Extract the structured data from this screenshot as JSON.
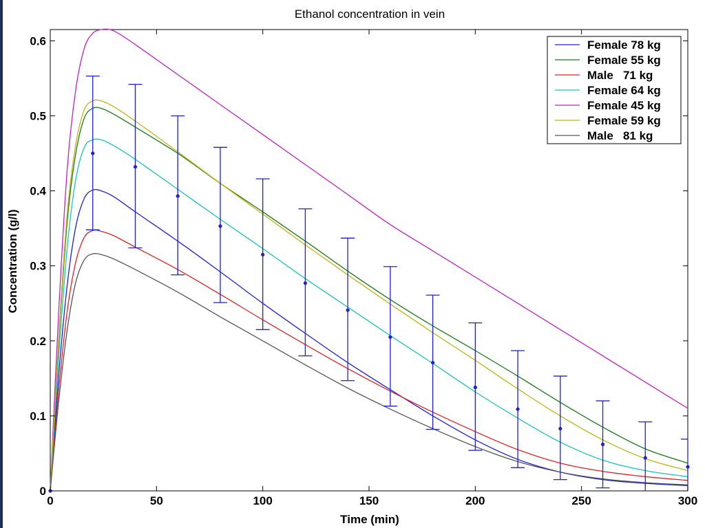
{
  "chart_data": {
    "type": "line",
    "title": "Ethanol  concentration in vein",
    "xlabel": "Time (min)",
    "ylabel": "Concentration (g/l)",
    "xlim": [
      0,
      300
    ],
    "ylim": [
      0,
      0.615
    ],
    "xticks": [
      0,
      50,
      100,
      150,
      200,
      250,
      300
    ],
    "xtick_labels": [
      "0",
      "50",
      "100",
      "150",
      "200",
      "250",
      "300"
    ],
    "yticks": [
      0,
      0.1,
      0.2,
      0.3,
      0.4,
      0.5,
      0.6
    ],
    "ytick_labels": [
      "0",
      "0.1",
      "0.2",
      "0.3",
      "0.4",
      "0.5",
      "0.6"
    ],
    "grid": false,
    "legend_position": "top-right",
    "series": [
      {
        "name": "Female 78 kg",
        "color": "#1f1fd6",
        "x": [
          0,
          4,
          8,
          12,
          16,
          20,
          24,
          30,
          40,
          60,
          80,
          100,
          120,
          140,
          160,
          180,
          200,
          220,
          240,
          260,
          280,
          300
        ],
        "y": [
          0,
          0.155,
          0.275,
          0.352,
          0.39,
          0.401,
          0.4,
          0.392,
          0.372,
          0.333,
          0.292,
          0.25,
          0.21,
          0.171,
          0.135,
          0.1,
          0.068,
          0.042,
          0.025,
          0.015,
          0.01,
          0.007
        ]
      },
      {
        "name": "Female 55 kg",
        "color": "#167a16",
        "x": [
          0,
          4,
          8,
          12,
          16,
          20,
          24,
          30,
          40,
          60,
          80,
          100,
          120,
          140,
          160,
          180,
          200,
          220,
          240,
          260,
          280,
          300
        ],
        "y": [
          0,
          0.2,
          0.36,
          0.45,
          0.497,
          0.51,
          0.51,
          0.502,
          0.485,
          0.45,
          0.41,
          0.372,
          0.333,
          0.293,
          0.255,
          0.22,
          0.187,
          0.153,
          0.118,
          0.085,
          0.056,
          0.037
        ]
      },
      {
        "name": "Male   71 kg",
        "color": "#e32020",
        "x": [
          0,
          4,
          8,
          12,
          16,
          20,
          24,
          30,
          40,
          60,
          80,
          100,
          120,
          140,
          160,
          180,
          200,
          220,
          240,
          260,
          280,
          300
        ],
        "y": [
          0,
          0.135,
          0.24,
          0.305,
          0.338,
          0.347,
          0.346,
          0.34,
          0.325,
          0.295,
          0.262,
          0.228,
          0.195,
          0.163,
          0.133,
          0.105,
          0.079,
          0.055,
          0.037,
          0.026,
          0.019,
          0.014
        ]
      },
      {
        "name": "Female 64 kg",
        "color": "#17c2c2",
        "x": [
          0,
          4,
          8,
          12,
          16,
          20,
          24,
          30,
          40,
          60,
          80,
          100,
          120,
          140,
          160,
          180,
          200,
          220,
          240,
          260,
          280,
          300
        ],
        "y": [
          0,
          0.18,
          0.325,
          0.415,
          0.458,
          0.468,
          0.468,
          0.46,
          0.442,
          0.402,
          0.362,
          0.323,
          0.283,
          0.245,
          0.207,
          0.17,
          0.132,
          0.097,
          0.065,
          0.041,
          0.027,
          0.019
        ]
      },
      {
        "name": "Female 45 kg",
        "color": "#c21fc2",
        "x": [
          0,
          4,
          8,
          12,
          16,
          20,
          24,
          28,
          32,
          40,
          60,
          80,
          100,
          120,
          140,
          160,
          180,
          200,
          220,
          240,
          260,
          280,
          300
        ],
        "y": [
          0,
          0.24,
          0.43,
          0.535,
          0.59,
          0.61,
          0.615,
          0.615,
          0.61,
          0.595,
          0.555,
          0.515,
          0.475,
          0.435,
          0.395,
          0.355,
          0.32,
          0.285,
          0.25,
          0.215,
          0.18,
          0.145,
          0.11
        ]
      },
      {
        "name": "Female 59 kg",
        "color": "#bdb511",
        "x": [
          0,
          4,
          8,
          12,
          16,
          20,
          24,
          30,
          40,
          60,
          80,
          100,
          120,
          140,
          160,
          180,
          200,
          220,
          240,
          260,
          280,
          300
        ],
        "y": [
          0,
          0.205,
          0.37,
          0.462,
          0.508,
          0.52,
          0.52,
          0.512,
          0.493,
          0.452,
          0.41,
          0.369,
          0.328,
          0.288,
          0.249,
          0.211,
          0.174,
          0.136,
          0.1,
          0.068,
          0.043,
          0.027
        ]
      },
      {
        "name": "Male   81 kg",
        "color": "#555555",
        "x": [
          0,
          4,
          8,
          12,
          16,
          20,
          24,
          30,
          40,
          60,
          80,
          100,
          120,
          140,
          160,
          180,
          200,
          220,
          240,
          260,
          280,
          300
        ],
        "y": [
          0,
          0.12,
          0.215,
          0.278,
          0.308,
          0.316,
          0.315,
          0.309,
          0.295,
          0.265,
          0.232,
          0.2,
          0.168,
          0.137,
          0.109,
          0.083,
          0.059,
          0.039,
          0.025,
          0.016,
          0.011,
          0.008
        ]
      }
    ],
    "error_bars": {
      "color": "#1f1fd6",
      "x": [
        0,
        20,
        40,
        60,
        80,
        100,
        120,
        140,
        160,
        180,
        200,
        220,
        240,
        260,
        280,
        300
      ],
      "y": [
        0,
        0.45,
        0.432,
        0.393,
        0.353,
        0.315,
        0.277,
        0.241,
        0.205,
        0.171,
        0.138,
        0.109,
        0.083,
        0.062,
        0.044,
        0.032
      ],
      "lower": [
        null,
        0.348,
        0.324,
        0.288,
        0.251,
        0.215,
        0.18,
        0.147,
        0.113,
        0.082,
        0.054,
        0.031,
        0.015,
        0.004,
        null,
        null
      ],
      "upper": [
        null,
        0.553,
        0.542,
        0.5,
        0.458,
        0.416,
        0.376,
        0.337,
        0.299,
        0.261,
        0.224,
        0.187,
        0.153,
        0.12,
        0.092,
        0.069
      ]
    }
  }
}
